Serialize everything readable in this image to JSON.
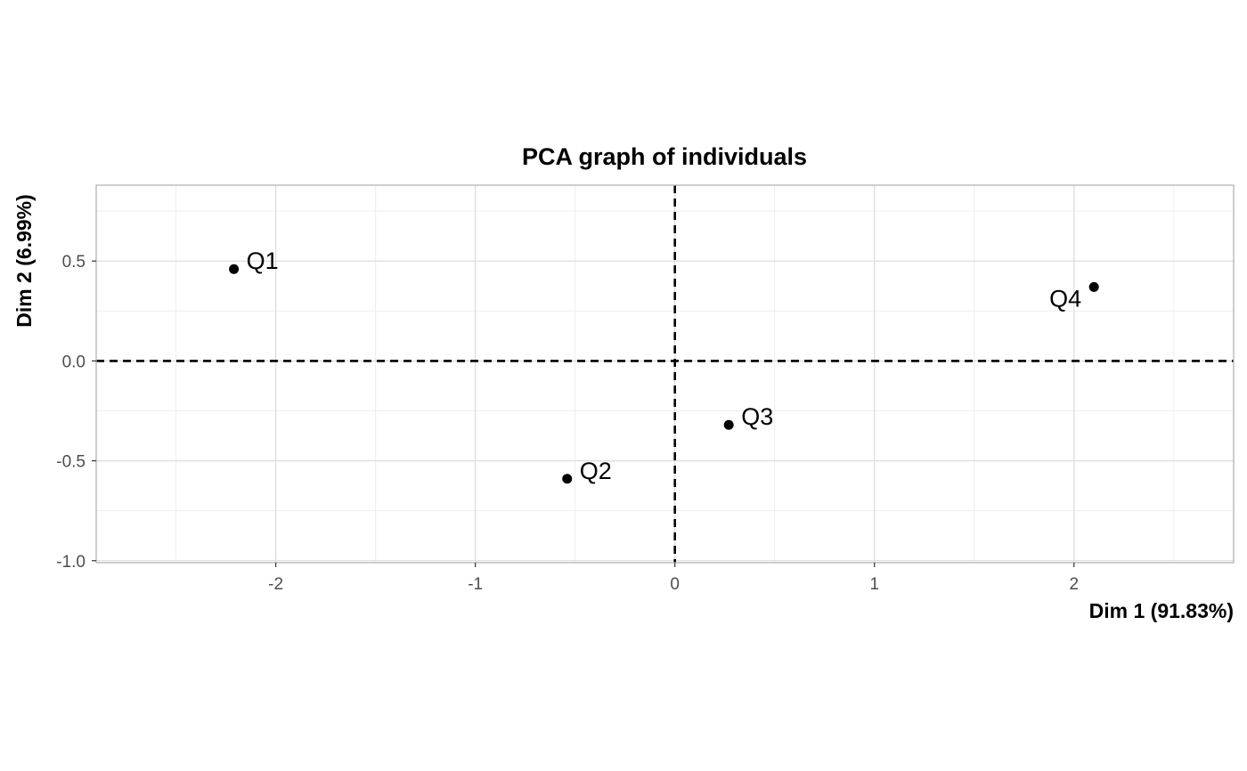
{
  "chart_data": {
    "type": "scatter",
    "title": "PCA graph of individuals",
    "xlabel": "Dim 1 (91.83%)",
    "ylabel": "Dim 2 (6.99%)",
    "xlim": [
      -2.9,
      2.8
    ],
    "ylim": [
      -1.01,
      0.88
    ],
    "x_ticks": [
      -2,
      -1,
      0,
      1,
      2
    ],
    "x_tick_labels": [
      "-2",
      "-1",
      "0",
      "1",
      "2"
    ],
    "y_ticks": [
      -1.0,
      -0.5,
      0.0,
      0.5
    ],
    "y_tick_labels": [
      "-1.0",
      "-0.5",
      "0.0",
      "0.5"
    ],
    "grid": true,
    "reference_lines": {
      "x": 0,
      "y": 0,
      "style": "dashed"
    },
    "points": [
      {
        "label": "Q1",
        "x": -2.21,
        "y": 0.46
      },
      {
        "label": "Q2",
        "x": -0.54,
        "y": -0.59
      },
      {
        "label": "Q3",
        "x": 0.27,
        "y": -0.32
      },
      {
        "label": "Q4",
        "x": 2.1,
        "y": 0.37
      }
    ],
    "colors": {
      "points": "#000000",
      "grid_major": "#dedede",
      "grid_minor": "#eeeeee",
      "panel_border": "#b3b3b3",
      "tick_text": "#4d4d4d"
    }
  }
}
